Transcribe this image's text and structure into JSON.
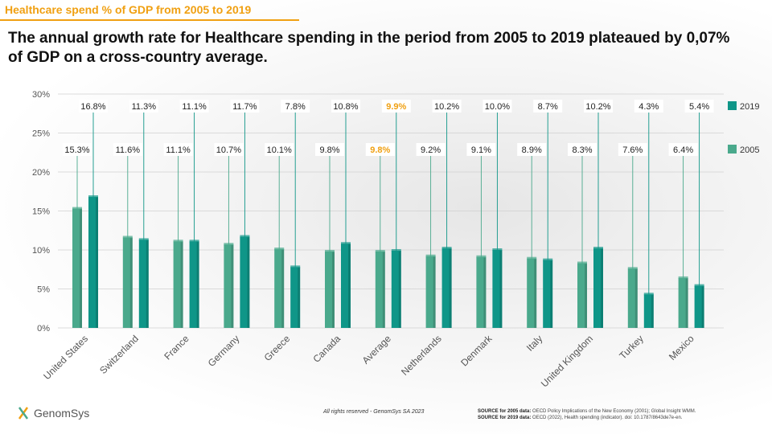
{
  "header": {
    "topic": "Healthcare spend % of GDP from 2005  to 2019",
    "headline": "The annual growth rate for Healthcare spending in the period from 2005 to 2019 plateaued by 0,07% of GDP on a cross-country average."
  },
  "footer": {
    "copyright": "All rights reserved - GenomSys SA 2023",
    "source_2005_label": "SOURCE for 2005 data:",
    "source_2005_text": "OECD Policy Implications of the New Economy (2001); Global Insight WMM.",
    "source_2019_label": "SOURCE for 2019 data:",
    "source_2019_text": "OECD (2022), Health spending (indicator). doi: 10.1787/8643de7e-en.",
    "logo_text": "GenomSys"
  },
  "colors": {
    "series_2005": "#4aa98c",
    "series_2019": "#0f9688",
    "highlight": "#f0a012",
    "brand": "#f0a012"
  },
  "chart_data": {
    "type": "bar",
    "categories": [
      "United States",
      "Switzerland",
      "France",
      "Germany",
      "Greece",
      "Canada",
      "Average",
      "Netherlands",
      "Denmark",
      "Italy",
      "United Kingdom",
      "Turkey",
      "Mexico"
    ],
    "series": [
      {
        "name": "2005",
        "values": [
          15.3,
          11.6,
          11.1,
          10.7,
          10.1,
          9.8,
          9.8,
          9.2,
          9.1,
          8.9,
          8.3,
          7.6,
          6.4
        ],
        "labels": [
          "15.3%",
          "11.6%",
          "11.1%",
          "10.7%",
          "10.1%",
          "9.8%",
          "9.8%",
          "9.2%",
          "9.1%",
          "8.9%",
          "8.3%",
          "7.6%",
          "6.4%"
        ]
      },
      {
        "name": "2019",
        "values": [
          16.8,
          11.3,
          11.1,
          11.7,
          7.8,
          10.8,
          9.9,
          10.2,
          10.0,
          8.7,
          10.2,
          4.3,
          5.4
        ],
        "labels": [
          "16.8%",
          "11.3%",
          "11.1%",
          "11.7%",
          "7.8%",
          "10.8%",
          "9.9%",
          "10.2%",
          "10.0%",
          "8.7%",
          "10.2%",
          "4.3%",
          "5.4%"
        ]
      }
    ],
    "highlight_category": "Average",
    "y_ticks": [
      "0%",
      "5%",
      "10%",
      "15%",
      "20%",
      "25%",
      "30%"
    ],
    "ylim": [
      0,
      30
    ],
    "grid": true,
    "legend": "right"
  }
}
